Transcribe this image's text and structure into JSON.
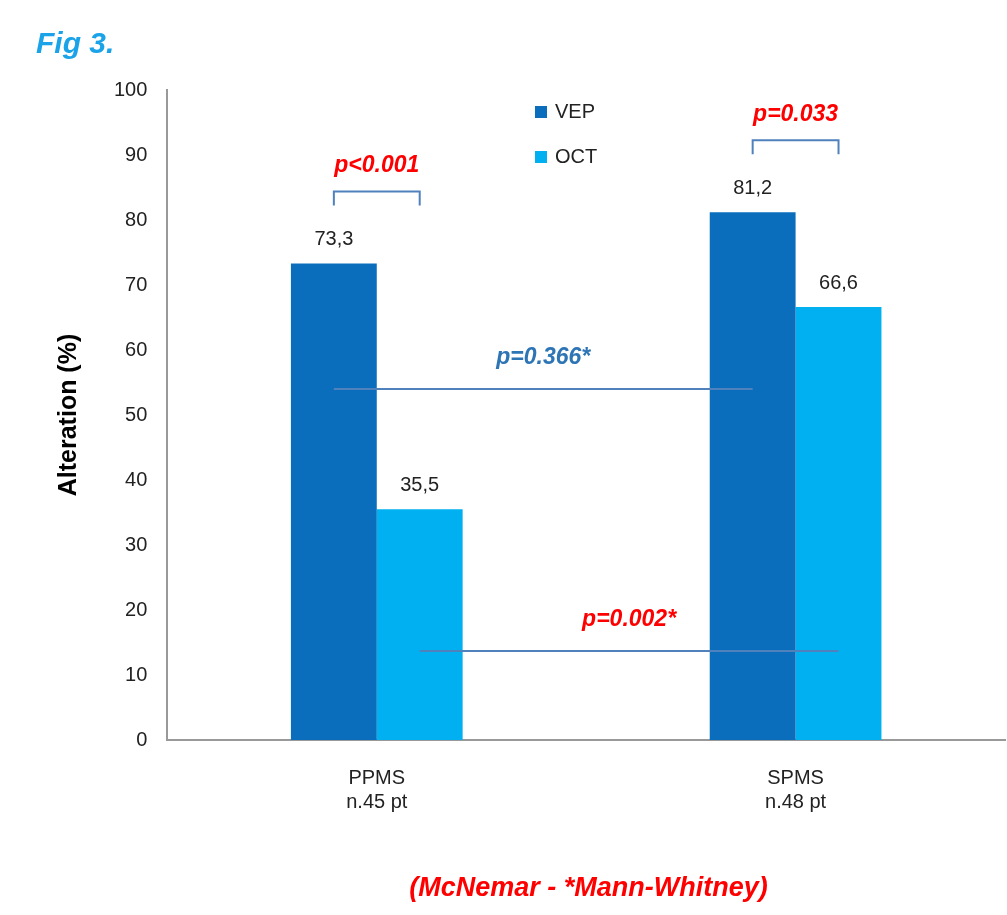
{
  "chart_data": {
    "type": "bar",
    "title": "Fig 3.",
    "ylabel": "Alteration (%)",
    "categories": [
      "PPMS\nn.45 pt",
      "SPMS\nn.48 pt"
    ],
    "series": [
      {
        "name": "VEP",
        "color": "#0a6ebd",
        "values": [
          73.3,
          81.2
        ],
        "value_labels": [
          "73,3",
          "81,2"
        ]
      },
      {
        "name": "OCT",
        "color": "#00b0f0",
        "values": [
          35.5,
          66.6
        ],
        "value_labels": [
          "35,5",
          "66,6"
        ]
      }
    ],
    "ylim": [
      0,
      100
    ],
    "yticks": [
      0,
      10,
      20,
      30,
      40,
      50,
      60,
      70,
      80,
      90,
      100
    ],
    "grid": false,
    "legend": "top",
    "annotations": [
      "p<0.001",
      "p=0.033",
      "p=0.366*",
      "p=0.002*",
      "(McNemar - *Mann-Whitney)"
    ]
  }
}
